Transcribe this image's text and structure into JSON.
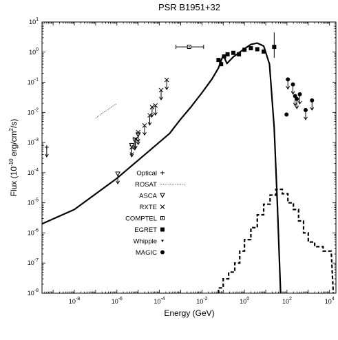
{
  "chart_data": {
    "type": "scatter",
    "title": "PSR B1951+32",
    "xlabel": "Energy (GeV)",
    "ylabel": "Flux (10",
    "ylabel_exp1": "-10",
    "ylabel_mid": " erg/cm",
    "ylabel_exp2": "2",
    "ylabel_end": "/s)",
    "x_scale": "log",
    "y_scale": "log",
    "xlim": [
      3e-10,
      20000
    ],
    "ylim": [
      1e-08,
      10
    ],
    "x_ticks": [
      {
        "value": 1e-08,
        "base": "10",
        "exp": "-8"
      },
      {
        "value": 1e-06,
        "base": "10",
        "exp": "-6"
      },
      {
        "value": 0.0001,
        "base": "10",
        "exp": "-4"
      },
      {
        "value": 0.01,
        "base": "10",
        "exp": "-2"
      },
      {
        "value": 1,
        "base": "10",
        "exp": "0"
      },
      {
        "value": 100,
        "base": "10",
        "exp": "2"
      },
      {
        "value": 10000,
        "base": "10",
        "exp": "4"
      }
    ],
    "y_ticks": [
      {
        "value": 1e-08,
        "base": "10",
        "exp": "-8"
      },
      {
        "value": 1e-07,
        "base": "10",
        "exp": "-7"
      },
      {
        "value": 1e-06,
        "base": "10",
        "exp": "-6"
      },
      {
        "value": 1e-05,
        "base": "10",
        "exp": "-5"
      },
      {
        "value": 0.0001,
        "base": "10",
        "exp": "-4"
      },
      {
        "value": 0.001,
        "base": "10",
        "exp": "-3"
      },
      {
        "value": 0.01,
        "base": "10",
        "exp": "-2"
      },
      {
        "value": 0.1,
        "base": "10",
        "exp": "-1"
      },
      {
        "value": 1,
        "base": "10",
        "exp": "0"
      },
      {
        "value": 10,
        "base": "10",
        "exp": "1"
      }
    ],
    "legend": [
      {
        "label": "Optical",
        "marker": "plus"
      },
      {
        "label": "ROSAT",
        "marker": "dotted-line"
      },
      {
        "label": "ASCA",
        "marker": "triangle-down-open"
      },
      {
        "label": "RXTE",
        "marker": "cross"
      },
      {
        "label": "COMPTEL",
        "marker": "square-open"
      },
      {
        "label": "EGRET",
        "marker": "square-filled"
      },
      {
        "label": "Whipple",
        "marker": "triangle-down-filled"
      },
      {
        "label": "MAGIC",
        "marker": "circle-filled"
      }
    ],
    "series": [
      {
        "name": "Optical",
        "marker": "plus",
        "points": [
          {
            "x": 5e-10,
            "y": 0.0007,
            "upper_limit": true
          }
        ]
      },
      {
        "name": "ROSAT",
        "marker": "dotted-line",
        "segment": [
          {
            "x": 1e-07,
            "y": 0.0065
          },
          {
            "x": 1e-06,
            "y": 0.02
          }
        ]
      },
      {
        "name": "ASCA",
        "marker": "triangle-down-open",
        "points": [
          {
            "x": 1.1e-06,
            "y": 9e-05,
            "upper_limit": true
          },
          {
            "x": 5e-06,
            "y": 0.0008,
            "upper_limit": true
          },
          {
            "x": 7e-06,
            "y": 0.0012,
            "upper_limit": true
          },
          {
            "x": 1e-05,
            "y": 0.0018,
            "upper_limit": true
          }
        ]
      },
      {
        "name": "RXTE",
        "marker": "cross",
        "points": [
          {
            "x": 5e-06,
            "y": 0.0007,
            "upper_limit": true
          },
          {
            "x": 7.5e-06,
            "y": 0.0013,
            "upper_limit": true
          },
          {
            "x": 1e-05,
            "y": 0.0022,
            "upper_limit": true
          },
          {
            "x": 2e-05,
            "y": 0.0037,
            "upper_limit": true
          },
          {
            "x": 3.5e-05,
            "y": 0.008,
            "upper_limit": true
          },
          {
            "x": 4.5e-05,
            "y": 0.015,
            "upper_limit": true
          },
          {
            "x": 6.5e-05,
            "y": 0.017,
            "upper_limit": true
          },
          {
            "x": 0.00012,
            "y": 0.055,
            "upper_limit": true
          },
          {
            "x": 0.00022,
            "y": 0.12,
            "upper_limit": true
          }
        ]
      },
      {
        "name": "COMPTEL",
        "marker": "square-open",
        "points": [
          {
            "x": 0.0025,
            "y": 1.5,
            "xmin": 0.0006,
            "xmax": 0.012
          }
        ]
      },
      {
        "name": "EGRET",
        "marker": "square-filled",
        "points": [
          {
            "x": 0.06,
            "y": 0.55
          },
          {
            "x": 0.08,
            "y": 0.4
          },
          {
            "x": 0.11,
            "y": 0.72
          },
          {
            "x": 0.16,
            "y": 0.85
          },
          {
            "x": 0.3,
            "y": 0.95
          },
          {
            "x": 0.55,
            "y": 0.85
          },
          {
            "x": 1.0,
            "y": 1.2
          },
          {
            "x": 2.0,
            "y": 1.35
          },
          {
            "x": 4.0,
            "y": 1.25
          },
          {
            "x": 8.0,
            "y": 1.05
          },
          {
            "x": 25.0,
            "y": 1.5,
            "yerr_low": 0.65,
            "yerr_high": 4.5
          }
        ]
      },
      {
        "name": "MAGIC",
        "marker": "circle-filled",
        "points": [
          {
            "x": 95,
            "y": 0.0085
          },
          {
            "x": 110,
            "y": 0.125,
            "upper_limit": true
          },
          {
            "x": 190,
            "y": 0.085,
            "upper_limit": true
          },
          {
            "x": 240,
            "y": 0.035,
            "upper_limit": true
          },
          {
            "x": 290,
            "y": 0.028,
            "upper_limit": true
          },
          {
            "x": 400,
            "y": 0.04,
            "upper_limit": true
          },
          {
            "x": 750,
            "y": 0.012,
            "upper_limit": true
          },
          {
            "x": 1500,
            "y": 0.025,
            "upper_limit": true
          }
        ]
      },
      {
        "name": "model-solid",
        "style": "solid",
        "points": [
          {
            "x": 3e-10,
            "y": 2e-06
          },
          {
            "x": 1e-08,
            "y": 6e-06
          },
          {
            "x": 1e-06,
            "y": 6.5e-05
          },
          {
            "x": 3e-05,
            "y": 0.0005
          },
          {
            "x": 0.0003,
            "y": 0.002
          },
          {
            "x": 0.001,
            "y": 0.006
          },
          {
            "x": 0.003,
            "y": 0.015
          },
          {
            "x": 0.01,
            "y": 0.045
          },
          {
            "x": 0.03,
            "y": 0.13
          },
          {
            "x": 0.06,
            "y": 0.3
          },
          {
            "x": 0.1,
            "y": 0.8
          },
          {
            "x": 0.15,
            "y": 0.42
          },
          {
            "x": 0.3,
            "y": 0.7
          },
          {
            "x": 1,
            "y": 1.3
          },
          {
            "x": 2,
            "y": 1.8
          },
          {
            "x": 4,
            "y": 2.0
          },
          {
            "x": 8,
            "y": 1.6
          },
          {
            "x": 15,
            "y": 0.4
          },
          {
            "x": 25,
            "y": 0.003
          },
          {
            "x": 35,
            "y": 1e-05
          },
          {
            "x": 50,
            "y": 1e-08
          }
        ]
      },
      {
        "name": "model-dashed",
        "style": "dashed-step",
        "points": [
          {
            "x": 0.06,
            "y": 1e-08
          },
          {
            "x": 0.06,
            "y": 1.5e-08
          },
          {
            "x": 0.1,
            "y": 1.5e-08
          },
          {
            "x": 0.1,
            "y": 3e-08
          },
          {
            "x": 0.18,
            "y": 3e-08
          },
          {
            "x": 0.18,
            "y": 5e-08
          },
          {
            "x": 0.35,
            "y": 5e-08
          },
          {
            "x": 0.35,
            "y": 1e-07
          },
          {
            "x": 0.6,
            "y": 1e-07
          },
          {
            "x": 0.6,
            "y": 2.5e-07
          },
          {
            "x": 1,
            "y": 2.5e-07
          },
          {
            "x": 1,
            "y": 6e-07
          },
          {
            "x": 2,
            "y": 6e-07
          },
          {
            "x": 2,
            "y": 1.5e-06
          },
          {
            "x": 4,
            "y": 1.5e-06
          },
          {
            "x": 4,
            "y": 4e-06
          },
          {
            "x": 8,
            "y": 4e-06
          },
          {
            "x": 8,
            "y": 9e-06
          },
          {
            "x": 16,
            "y": 9e-06
          },
          {
            "x": 16,
            "y": 1.8e-05
          },
          {
            "x": 30,
            "y": 1.8e-05
          },
          {
            "x": 30,
            "y": 2.8e-05
          },
          {
            "x": 60,
            "y": 2.8e-05
          },
          {
            "x": 60,
            "y": 2e-05
          },
          {
            "x": 110,
            "y": 2e-05
          },
          {
            "x": 110,
            "y": 1e-05
          },
          {
            "x": 200,
            "y": 1e-05
          },
          {
            "x": 200,
            "y": 6e-06
          },
          {
            "x": 350,
            "y": 6e-06
          },
          {
            "x": 350,
            "y": 2.5e-06
          },
          {
            "x": 600,
            "y": 2.5e-06
          },
          {
            "x": 600,
            "y": 1e-06
          },
          {
            "x": 1000,
            "y": 1e-06
          },
          {
            "x": 1000,
            "y": 5e-07
          },
          {
            "x": 2000,
            "y": 5e-07
          },
          {
            "x": 2000,
            "y": 3.5e-07
          },
          {
            "x": 5000,
            "y": 3.5e-07
          },
          {
            "x": 5000,
            "y": 2.5e-07
          },
          {
            "x": 12000,
            "y": 2.5e-07
          },
          {
            "x": 15000,
            "y": 1e-08
          }
        ]
      }
    ]
  }
}
